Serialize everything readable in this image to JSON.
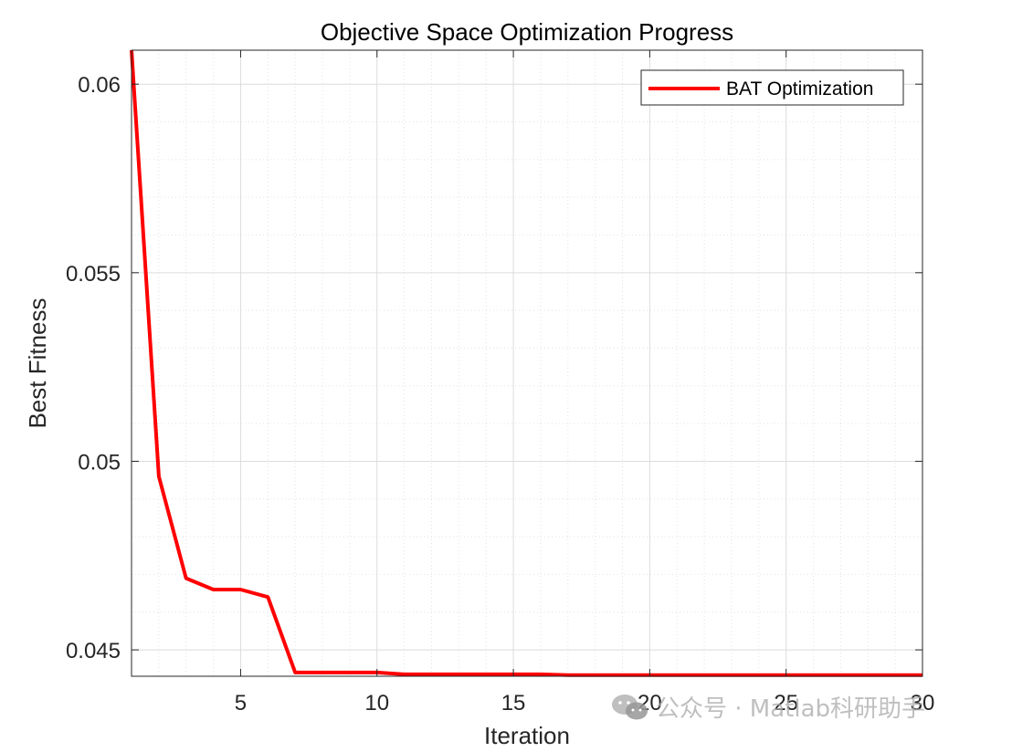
{
  "chart_data": {
    "type": "line",
    "title": "Objective Space Optimization Progress",
    "xlabel": "Iteration",
    "ylabel": "Best Fitness",
    "xlim": [
      1,
      30
    ],
    "ylim": [
      0.0443,
      0.0609
    ],
    "xticks": [
      5,
      10,
      15,
      20,
      25,
      30
    ],
    "xtick_labels": [
      "5",
      "10",
      "15",
      "20",
      "25",
      "30"
    ],
    "yticks": [
      0.045,
      0.05,
      0.055,
      0.06
    ],
    "ytick_labels": [
      "0.045",
      "0.05",
      "0.055",
      "0.06"
    ],
    "grid": true,
    "minor_grid": true,
    "legend": "top-right",
    "series": [
      {
        "name": "BAT Optimization",
        "color": "#ff0000",
        "x": [
          1,
          2,
          3,
          4,
          5,
          6,
          7,
          8,
          9,
          10,
          11,
          12,
          13,
          14,
          15,
          16,
          17,
          18,
          19,
          20,
          21,
          22,
          23,
          24,
          25,
          26,
          27,
          28,
          29,
          30
        ],
        "y": [
          0.0609,
          0.0496,
          0.0469,
          0.0466,
          0.0466,
          0.0464,
          0.0444,
          0.0444,
          0.0444,
          0.0444,
          0.04435,
          0.04435,
          0.04435,
          0.04435,
          0.04435,
          0.04435,
          0.04433,
          0.04433,
          0.04433,
          0.04433,
          0.04433,
          0.04433,
          0.04433,
          0.04433,
          0.04433,
          0.04433,
          0.04433,
          0.04433,
          0.04433,
          0.04433
        ]
      }
    ]
  },
  "watermark": {
    "text": "公众号 · Matlab科研助手",
    "icon": "wechat-icon"
  }
}
